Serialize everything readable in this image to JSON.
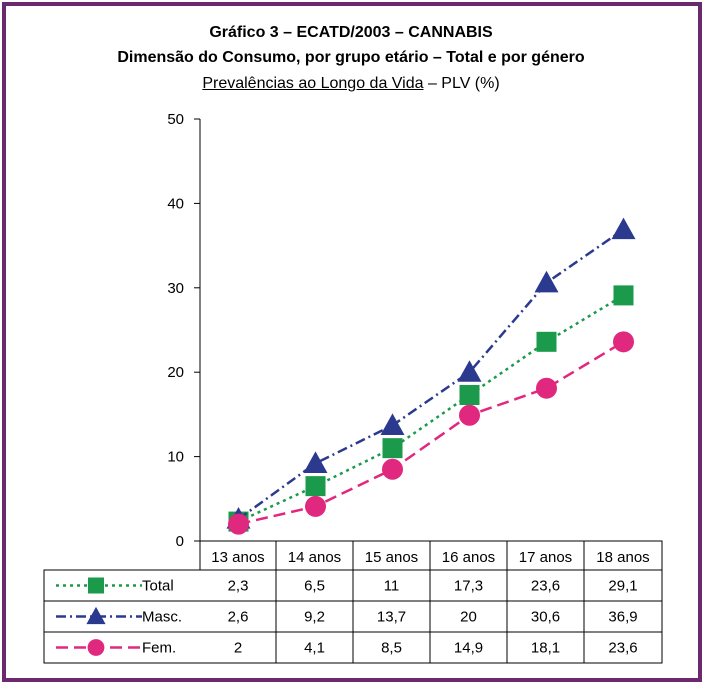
{
  "chart_data": {
    "type": "line",
    "title": "Gráfico 3 – ECATD/2003 – CANNABIS",
    "subtitle": "Dimensão do Consumo, por grupo etário – Total e por género",
    "subtitle2_underlined": "Prevalências ao Longo da Vida",
    "subtitle2_rest": " – PLV (%)",
    "categories": [
      "13 anos",
      "14 anos",
      "15 anos",
      "16 anos",
      "17 anos",
      "18 anos"
    ],
    "ylim": [
      0,
      50
    ],
    "yticks": [
      "0",
      "10",
      "20",
      "30",
      "40",
      "50"
    ],
    "series": [
      {
        "name": "Total",
        "values": [
          2.3,
          6.5,
          11,
          17.3,
          23.6,
          29.1
        ],
        "labels": [
          "2,3",
          "6,5",
          "11",
          "17,3",
          "23,6",
          "29,1"
        ],
        "color": "#1a9a4a",
        "marker": "square",
        "dash": "dotted"
      },
      {
        "name": "Masc.",
        "values": [
          2.6,
          9.2,
          13.7,
          20,
          30.6,
          36.9
        ],
        "labels": [
          "2,6",
          "9,2",
          "13,7",
          "20",
          "30,6",
          "36,9"
        ],
        "color": "#2b3a8f",
        "marker": "triangle",
        "dash": "dashdot"
      },
      {
        "name": "Fem.",
        "values": [
          2,
          4.1,
          8.5,
          14.9,
          18.1,
          23.6
        ],
        "labels": [
          "2",
          "4,1",
          "8,5",
          "14,9",
          "18,1",
          "23,6"
        ],
        "color": "#e0287f",
        "marker": "circle",
        "dash": "dashed"
      }
    ],
    "legend_position": "table-left",
    "grid": false
  }
}
